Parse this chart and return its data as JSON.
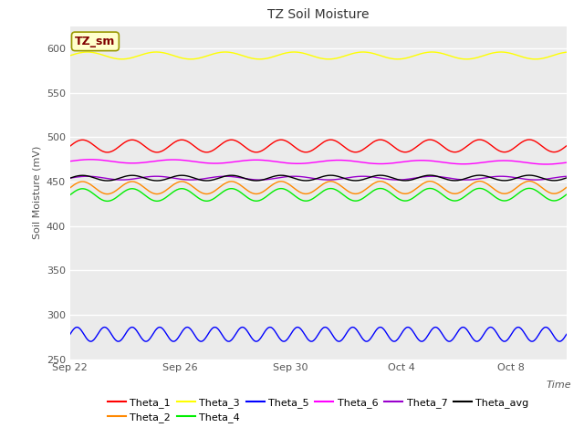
{
  "title": "TZ Soil Moisture",
  "ylabel": "Soil Moisture (mV)",
  "xlabel": "Time",
  "annotation_text": "TZ_sm",
  "annotation_color": "#800000",
  "annotation_bg": "#ffffcc",
  "annotation_border": "#999900",
  "ylim": [
    250,
    625
  ],
  "yticks": [
    250,
    300,
    350,
    400,
    450,
    500,
    550,
    600
  ],
  "plot_bg_color": "#ebebeb",
  "fig_bg_color": "#ffffff",
  "grid_color": "#ffffff",
  "series": {
    "Theta_1": {
      "color": "#ff0000",
      "base": 490,
      "amplitude": 7,
      "period": 1.8,
      "drift": 0.3
    },
    "Theta_2": {
      "color": "#ff8800",
      "base": 443,
      "amplitude": 7,
      "period": 1.8,
      "drift": 0.5
    },
    "Theta_3": {
      "color": "#ffff00",
      "base": 592,
      "amplitude": 4,
      "period": 2.5,
      "drift": 0.0
    },
    "Theta_4": {
      "color": "#00ee00",
      "base": 435,
      "amplitude": 7,
      "period": 1.8,
      "drift": 0.5
    },
    "Theta_5": {
      "color": "#0000ff",
      "base": 278,
      "amplitude": 8,
      "period": 1.0,
      "drift": 0.0
    },
    "Theta_6": {
      "color": "#ff00ff",
      "base": 473,
      "amplitude": 2,
      "period": 3.0,
      "drift": -1.5
    },
    "Theta_7": {
      "color": "#9900cc",
      "base": 454,
      "amplitude": 2,
      "period": 2.5,
      "drift": 0.0
    },
    "Theta_avg": {
      "color": "#000000",
      "base": 454,
      "amplitude": 3,
      "period": 1.8,
      "drift": 0.2
    }
  },
  "xtick_dates": [
    "Sep 22",
    "Sep 26",
    "Sep 30",
    "Oct 4",
    "Oct 8"
  ],
  "xtick_days": [
    0,
    4,
    8,
    12,
    16
  ],
  "total_days": 18,
  "n_points": 800,
  "title_fontsize": 10,
  "tick_fontsize": 8,
  "label_fontsize": 8,
  "legend_fontsize": 8
}
